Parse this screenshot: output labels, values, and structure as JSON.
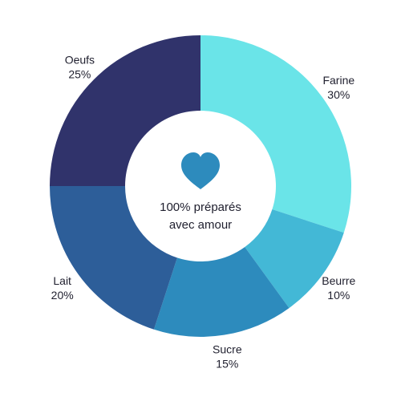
{
  "chart_data": {
    "type": "pie",
    "variant": "donut",
    "unit": "%",
    "slices": [
      {
        "label": "Farine",
        "value": 30,
        "color": "#6ae4e8"
      },
      {
        "label": "Beurre",
        "value": 10,
        "color": "#43b8d6"
      },
      {
        "label": "Sucre",
        "value": 15,
        "color": "#2d8bbd"
      },
      {
        "label": "Lait",
        "value": 20,
        "color": "#2d5e99"
      },
      {
        "label": "Oeufs",
        "value": 25,
        "color": "#30336b"
      }
    ],
    "center": {
      "icon": "heart-icon",
      "icon_color": "#2d8bbd",
      "line1": "100% préparés",
      "line2": "avec amour"
    }
  }
}
